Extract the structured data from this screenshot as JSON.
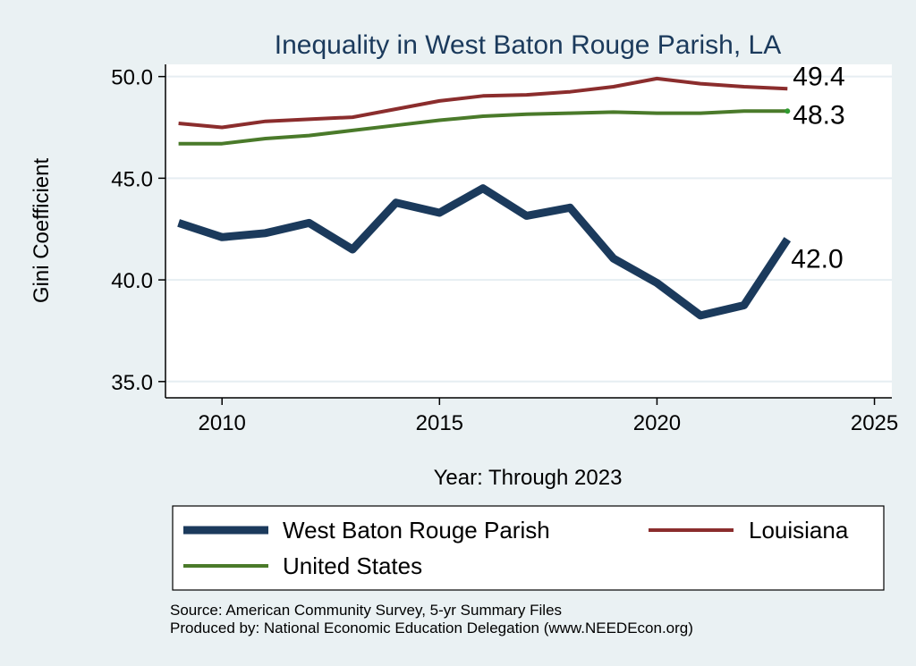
{
  "chart_data": {
    "type": "line",
    "title": "Inequality in West Baton Rouge Parish, LA",
    "xlabel": "Year: Through 2023",
    "ylabel": "Gini Coefficient",
    "xlim": [
      2008.7,
      2025.4
    ],
    "ylim": [
      34.2,
      50.6
    ],
    "xticks": [
      2010,
      2015,
      2020,
      2025
    ],
    "yticks": [
      35.0,
      40.0,
      45.0,
      50.0
    ],
    "ytick_labels": [
      "35.0",
      "40.0",
      "45.0",
      "50.0"
    ],
    "grid": true,
    "x": [
      2009,
      2010,
      2011,
      2012,
      2013,
      2014,
      2015,
      2016,
      2017,
      2018,
      2019,
      2020,
      2021,
      2022,
      2023
    ],
    "series": [
      {
        "name": "West Baton Rouge Parish",
        "color": "#1b3a5c",
        "values": [
          42.8,
          42.1,
          42.3,
          42.8,
          41.5,
          43.8,
          43.3,
          44.5,
          43.15,
          43.55,
          41.05,
          39.85,
          38.25,
          38.75,
          42.0
        ],
        "end_label": "42.0"
      },
      {
        "name": "Louisiana",
        "color": "#8b2d2d",
        "values": [
          47.7,
          47.5,
          47.8,
          47.9,
          48.0,
          48.4,
          48.8,
          49.05,
          49.1,
          49.25,
          49.5,
          49.9,
          49.65,
          49.5,
          49.4
        ],
        "end_label": "49.4"
      },
      {
        "name": "United States",
        "color": "#4a7a2a",
        "values": [
          46.7,
          46.7,
          46.95,
          47.1,
          47.35,
          47.6,
          47.85,
          48.05,
          48.15,
          48.2,
          48.25,
          48.2,
          48.2,
          48.3,
          48.3
        ],
        "end_label": "48.3"
      }
    ],
    "legend": {
      "position": "bottom",
      "entries": [
        "West Baton Rouge Parish",
        "Louisiana",
        "United States"
      ]
    },
    "notes": [
      "Source: American Community Survey, 5-yr Summary Files",
      "Produced by: National Economic Education Delegation (www.NEEDEcon.org)"
    ]
  }
}
